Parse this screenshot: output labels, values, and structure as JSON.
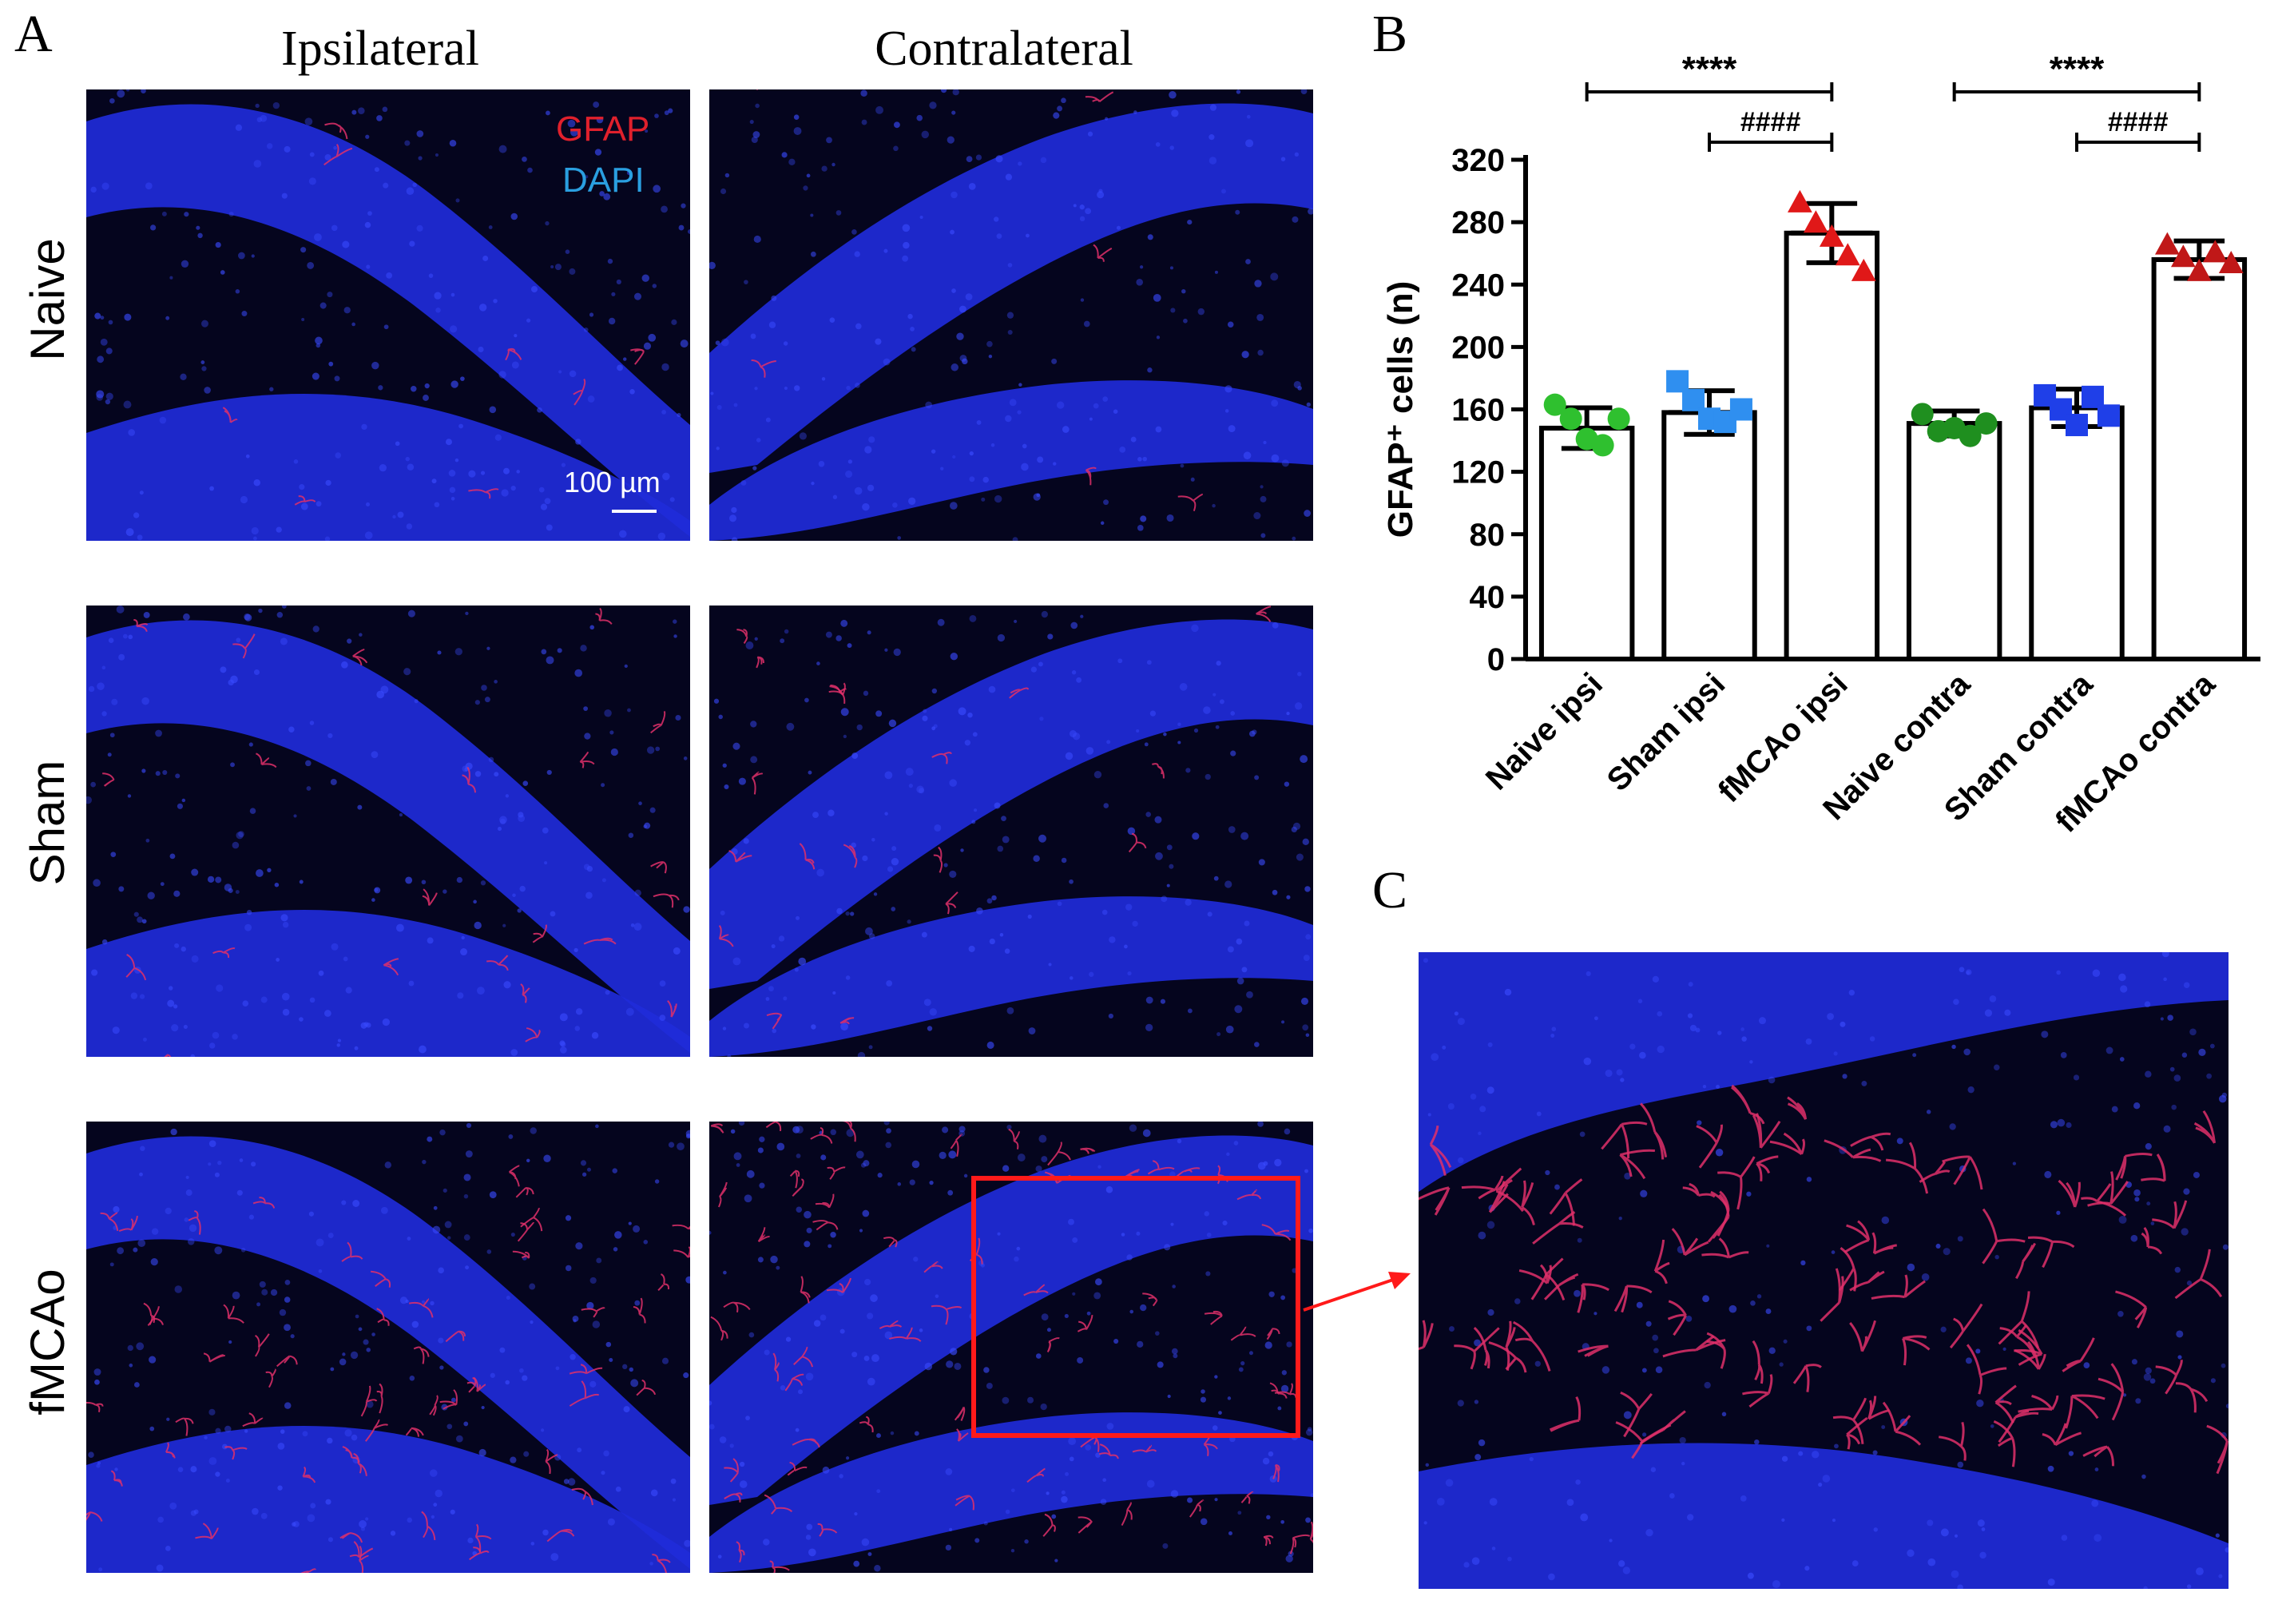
{
  "panels": {
    "a": "A",
    "b": "B",
    "c": "C"
  },
  "columns": [
    "Ipsilateral",
    "Contralateral"
  ],
  "rows": [
    "Naive",
    "Sham",
    "fMCAo"
  ],
  "legend": {
    "gfap": "GFAP",
    "dapi": "DAPI",
    "gfap_color": "#e0202c",
    "dapi_color": "#2a9fe0"
  },
  "scale_bar": "100 µm",
  "colors": {
    "nuclei": "#1f2bd9",
    "background": "#05051e",
    "astrocyte": "#e0306a",
    "highlight_box": "#ff1a1a"
  },
  "chart_data": {
    "type": "bar",
    "ylabel": "GFAP⁺ cells (n)",
    "ylim": [
      0,
      320
    ],
    "yticks": [
      0,
      40,
      80,
      120,
      160,
      200,
      240,
      280,
      320
    ],
    "categories": [
      "Naive ipsi",
      "Sham ipsi",
      "fMCAo ipsi",
      "Naive contra",
      "Sham contra",
      "fMCAo contra"
    ],
    "series": [
      {
        "values": [
          148,
          158,
          273,
          151,
          161,
          256
        ]
      }
    ],
    "errors": [
      13,
      14,
      19,
      8,
      12,
      12
    ],
    "points": [
      {
        "shape": "circle",
        "color": "#2fc02f",
        "values": [
          163,
          154,
          141,
          137,
          154
        ]
      },
      {
        "shape": "square",
        "color": "#2f8ff0",
        "values": [
          178,
          166,
          154,
          152,
          160
        ]
      },
      {
        "shape": "triangle",
        "color": "#e01818",
        "values": [
          292,
          279,
          270,
          258,
          248
        ]
      },
      {
        "shape": "circle",
        "color": "#1f8f1f",
        "values": [
          157,
          146,
          148,
          143,
          151
        ]
      },
      {
        "shape": "square",
        "color": "#1f3fe8",
        "values": [
          169,
          160,
          150,
          168,
          156
        ]
      },
      {
        "shape": "triangle",
        "color": "#c01818",
        "values": [
          265,
          257,
          248,
          260,
          253
        ]
      }
    ],
    "comparisons": [
      {
        "from": 0,
        "to": 2,
        "label": "****",
        "level": 2
      },
      {
        "from": 1,
        "to": 2,
        "label": "####",
        "level": 1
      },
      {
        "from": 3,
        "to": 5,
        "label": "****",
        "level": 2
      },
      {
        "from": 4,
        "to": 5,
        "label": "####",
        "level": 1
      }
    ]
  }
}
